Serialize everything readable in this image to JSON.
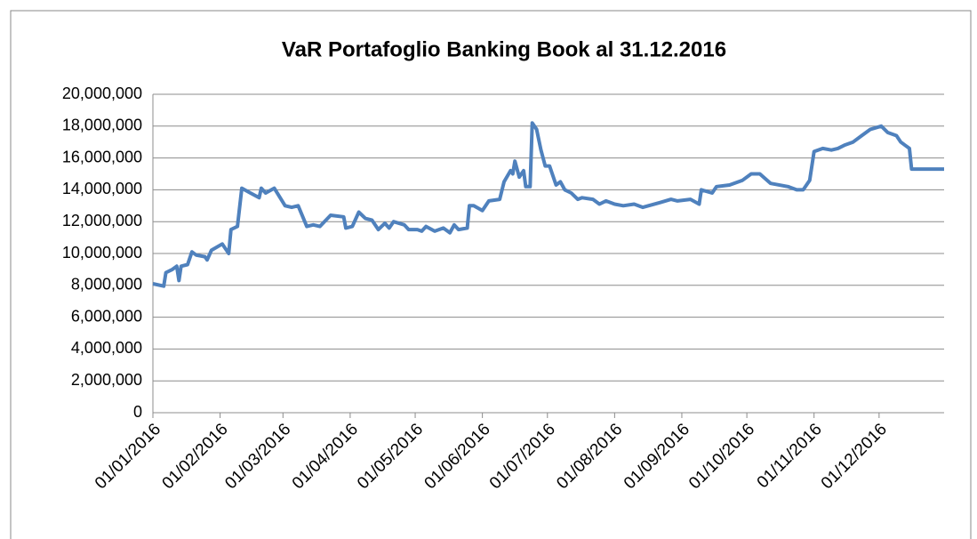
{
  "chart_data": {
    "type": "line",
    "title": "VaR Portafoglio Banking Book al 31.12.2016",
    "x": [
      "01/01/2016",
      "06/01/2016",
      "07/01/2016",
      "10/01/2016",
      "12/01/2016",
      "13/01/2016",
      "14/01/2016",
      "17/01/2016",
      "19/01/2016",
      "21/01/2016",
      "25/01/2016",
      "26/01/2016",
      "28/01/2016",
      "02/02/2016",
      "05/02/2016",
      "06/02/2016",
      "09/02/2016",
      "11/02/2016",
      "15/02/2016",
      "19/02/2016",
      "20/02/2016",
      "22/02/2016",
      "26/02/2016",
      "02/03/2016",
      "05/03/2016",
      "08/03/2016",
      "12/03/2016",
      "15/03/2016",
      "18/03/2016",
      "23/03/2016",
      "29/03/2016",
      "30/03/2016",
      "02/04/2016",
      "05/04/2016",
      "08/04/2016",
      "11/04/2016",
      "14/04/2016",
      "17/04/2016",
      "19/04/2016",
      "21/04/2016",
      "26/04/2016",
      "28/04/2016",
      "02/05/2016",
      "04/05/2016",
      "06/05/2016",
      "10/05/2016",
      "14/05/2016",
      "17/05/2016",
      "19/05/2016",
      "21/05/2016",
      "25/05/2016",
      "26/05/2016",
      "28/05/2016",
      "01/06/2016",
      "04/06/2016",
      "09/06/2016",
      "11/06/2016",
      "14/06/2016",
      "15/06/2016",
      "16/06/2016",
      "18/06/2016",
      "20/06/2016",
      "21/06/2016",
      "23/06/2016",
      "24/06/2016",
      "26/06/2016",
      "28/06/2016",
      "30/06/2016",
      "02/07/2016",
      "05/07/2016",
      "07/07/2016",
      "09/07/2016",
      "12/07/2016",
      "15/07/2016",
      "17/07/2016",
      "22/07/2016",
      "25/07/2016",
      "28/07/2016",
      "01/08/2016",
      "05/08/2016",
      "10/08/2016",
      "14/08/2016",
      "22/08/2016",
      "27/08/2016",
      "30/08/2016",
      "05/09/2016",
      "09/09/2016",
      "10/09/2016",
      "15/09/2016",
      "17/09/2016",
      "23/09/2016",
      "29/09/2016",
      "03/10/2016",
      "07/10/2016",
      "12/10/2016",
      "20/10/2016",
      "24/10/2016",
      "27/10/2016",
      "30/10/2016",
      "01/11/2016",
      "05/11/2016",
      "09/11/2016",
      "12/11/2016",
      "15/11/2016",
      "19/11/2016",
      "23/11/2016",
      "27/11/2016",
      "02/12/2016",
      "05/12/2016",
      "09/12/2016",
      "11/12/2016",
      "13/12/2016",
      "15/12/2016",
      "16/12/2016",
      "23/12/2016",
      "31/12/2016"
    ],
    "series": [
      {
        "name": "VaR",
        "color": "#4f81bd",
        "values": [
          8100000,
          7950000,
          8800000,
          9000000,
          9200000,
          8300000,
          9200000,
          9300000,
          10100000,
          9900000,
          9800000,
          9600000,
          10200000,
          10600000,
          10000000,
          11500000,
          11700000,
          14100000,
          13800000,
          13500000,
          14100000,
          13800000,
          14100000,
          13000000,
          12900000,
          13000000,
          11700000,
          11800000,
          11700000,
          12400000,
          12300000,
          11600000,
          11700000,
          12600000,
          12200000,
          12100000,
          11500000,
          11900000,
          11600000,
          12000000,
          11800000,
          11500000,
          11500000,
          11400000,
          11700000,
          11400000,
          11600000,
          11300000,
          11800000,
          11500000,
          11600000,
          13000000,
          13000000,
          12700000,
          13300000,
          13400000,
          14500000,
          15200000,
          15000000,
          15800000,
          14800000,
          15200000,
          14200000,
          14200000,
          18200000,
          17800000,
          16500000,
          15500000,
          15500000,
          14300000,
          14500000,
          14000000,
          13800000,
          13400000,
          13500000,
          13400000,
          13100000,
          13300000,
          13100000,
          13000000,
          13100000,
          12900000,
          13200000,
          13400000,
          13300000,
          13400000,
          13100000,
          14000000,
          13800000,
          14200000,
          14300000,
          14600000,
          15000000,
          15000000,
          14400000,
          14200000,
          14000000,
          14000000,
          14600000,
          16400000,
          16600000,
          16500000,
          16600000,
          16800000,
          17000000,
          17400000,
          17800000,
          18000000,
          17600000,
          17400000,
          17000000,
          16800000,
          16600000,
          15300000,
          15300000,
          15300000
        ]
      }
    ],
    "xlim": [
      "01/01/2016",
      "31/12/2016"
    ],
    "xticks": [
      "01/01/2016",
      "01/02/2016",
      "01/03/2016",
      "01/04/2016",
      "01/05/2016",
      "01/06/2016",
      "01/07/2016",
      "01/08/2016",
      "01/09/2016",
      "01/10/2016",
      "01/11/2016",
      "01/12/2016"
    ],
    "ylim": [
      0,
      20000000
    ],
    "yticks": [
      0,
      {
        "value": 2000000,
        "label": "2,000,000"
      },
      {
        "value": 4000000,
        "label": "4,000,000"
      },
      {
        "value": 6000000,
        "label": "6,000,000"
      },
      {
        "value": 8000000,
        "label": "8,000,000"
      },
      {
        "value": 10000000,
        "label": "10,000,000"
      },
      {
        "value": 12000000,
        "label": "12,000,000"
      },
      {
        "value": 14000000,
        "label": "14,000,000"
      },
      {
        "value": 16000000,
        "label": "16,000,000"
      },
      {
        "value": 18000000,
        "label": "18,000,000"
      },
      {
        "value": 20000000,
        "label": "20,000,000"
      }
    ],
    "grid": true
  }
}
